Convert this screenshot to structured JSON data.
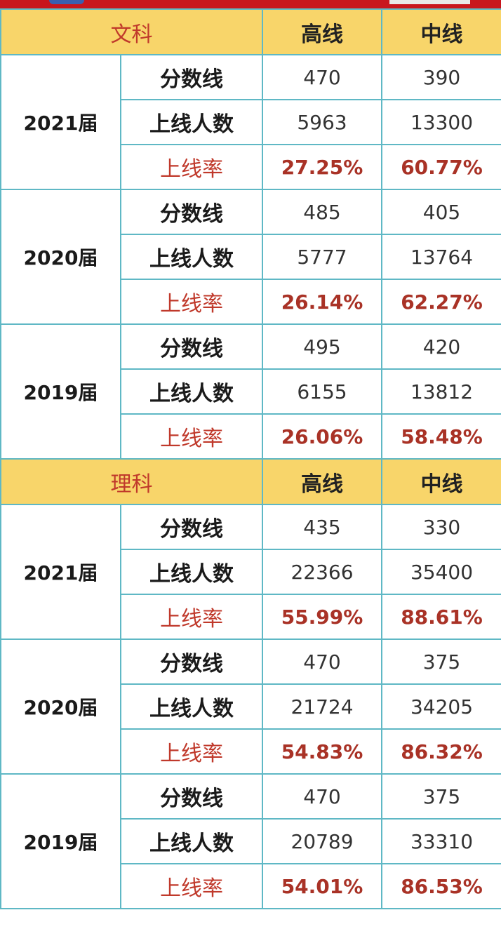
{
  "sections": [
    {
      "subject": "文科",
      "col_high": "高线",
      "col_mid": "中线",
      "groups": [
        {
          "year": "2021届",
          "rows": [
            {
              "label": "分数线",
              "high": "470",
              "mid": "390",
              "is_rate": false
            },
            {
              "label": "上线人数",
              "high": "5963",
              "mid": "13300",
              "is_rate": false
            },
            {
              "label": "上线率",
              "high": "27.25%",
              "mid": "60.77%",
              "is_rate": true
            }
          ]
        },
        {
          "year": "2020届",
          "rows": [
            {
              "label": "分数线",
              "high": "485",
              "mid": "405",
              "is_rate": false
            },
            {
              "label": "上线人数",
              "high": "5777",
              "mid": "13764",
              "is_rate": false
            },
            {
              "label": "上线率",
              "high": "26.14%",
              "mid": "62.27%",
              "is_rate": true
            }
          ]
        },
        {
          "year": "2019届",
          "rows": [
            {
              "label": "分数线",
              "high": "495",
              "mid": "420",
              "is_rate": false
            },
            {
              "label": "上线人数",
              "high": "6155",
              "mid": "13812",
              "is_rate": false
            },
            {
              "label": "上线率",
              "high": "26.06%",
              "mid": "58.48%",
              "is_rate": true
            }
          ]
        }
      ]
    },
    {
      "subject": "理科",
      "col_high": "高线",
      "col_mid": "中线",
      "groups": [
        {
          "year": "2021届",
          "rows": [
            {
              "label": "分数线",
              "high": "435",
              "mid": "330",
              "is_rate": false
            },
            {
              "label": "上线人数",
              "high": "22366",
              "mid": "35400",
              "is_rate": false
            },
            {
              "label": "上线率",
              "high": "55.99%",
              "mid": "88.61%",
              "is_rate": true
            }
          ]
        },
        {
          "year": "2020届",
          "rows": [
            {
              "label": "分数线",
              "high": "470",
              "mid": "375",
              "is_rate": false
            },
            {
              "label": "上线人数",
              "high": "21724",
              "mid": "34205",
              "is_rate": false
            },
            {
              "label": "上线率",
              "high": "54.83%",
              "mid": "86.32%",
              "is_rate": true
            }
          ]
        },
        {
          "year": "2019届",
          "rows": [
            {
              "label": "分数线",
              "high": "470",
              "mid": "375",
              "is_rate": false
            },
            {
              "label": "上线人数",
              "high": "20789",
              "mid": "33310",
              "is_rate": false
            },
            {
              "label": "上线率",
              "high": "54.01%",
              "mid": "86.53%",
              "is_rate": true
            }
          ]
        }
      ]
    }
  ],
  "colors": {
    "header_bg": "#f8d56a",
    "border": "#5fb8c5",
    "rate_text": "#c0392b",
    "top_bar": "#c8161d"
  }
}
